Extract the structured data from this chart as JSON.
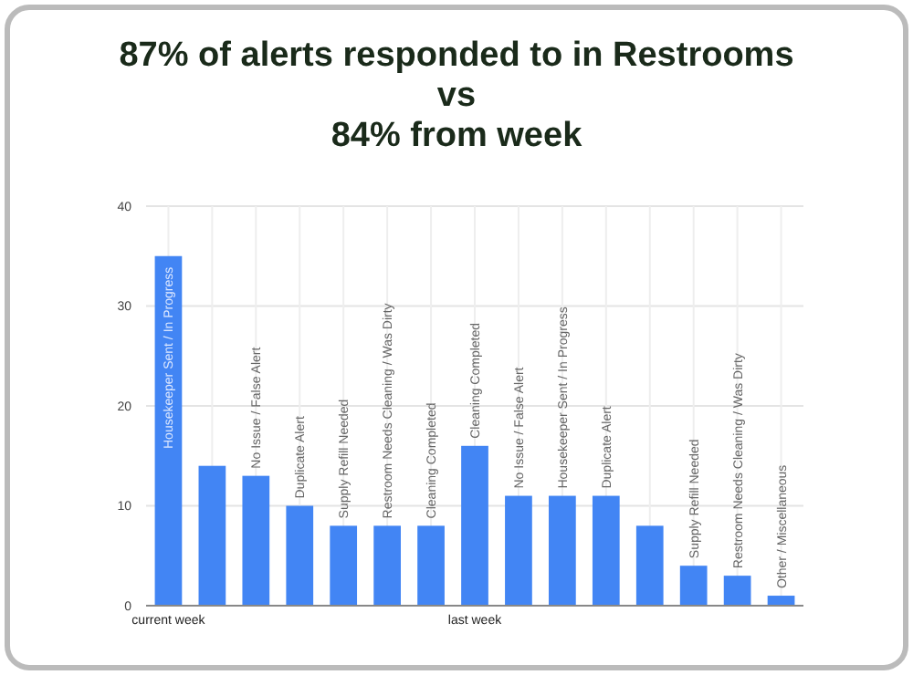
{
  "chart_data": {
    "type": "bar",
    "title": "87% of alerts responded to in Restrooms\nvs\n84% from week",
    "categories": [
      "current week",
      null,
      null,
      null,
      null,
      null,
      null,
      "last week",
      null,
      null,
      null,
      null,
      null,
      null,
      null
    ],
    "values": [
      35,
      14,
      13,
      10,
      8,
      8,
      8,
      16,
      11,
      11,
      11,
      8,
      4,
      3,
      1
    ],
    "value_labels": [
      "Housekeeper Sent / In Progress",
      null,
      "No Issue / False Alert",
      "Duplicate Alert",
      "Supply Refill Needed",
      "Restroom Needs Cleaning / Was Dirty",
      "Cleaning Completed",
      "Cleaning Completed",
      "No Issue / False Alert",
      "Housekeeper Sent / In Progress",
      "Duplicate Alert",
      null,
      "Supply Refill Needed",
      "Restroom Needs Cleaning / Was Dirty",
      "Other / Miscellaneous"
    ],
    "color": "#4285f4",
    "ylim": [
      0,
      40
    ],
    "yticks": [
      0,
      10,
      20,
      30,
      40
    ],
    "grid": true
  }
}
